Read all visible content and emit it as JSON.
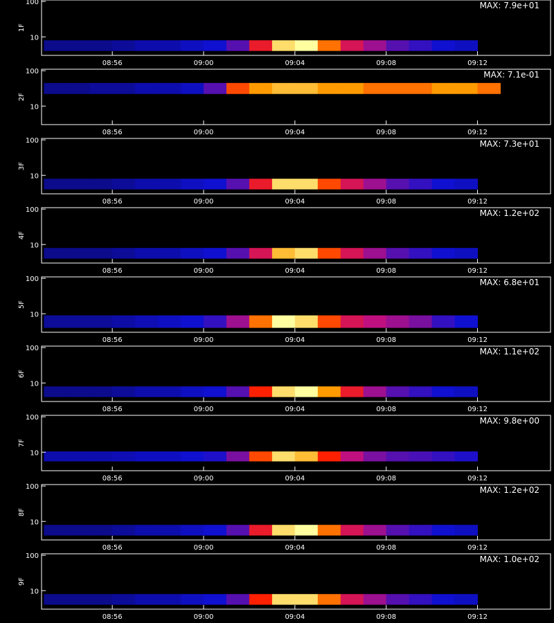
{
  "chart_data": [
    {
      "type": "spectrogram",
      "ylabel": "1F",
      "annotation": "MAX: 7.9e+01",
      "log_y": true,
      "xlim": [
        532.9,
        555.2
      ],
      "ylim": [
        3,
        110
      ],
      "yticks": [
        10,
        100
      ],
      "xticks": [
        {
          "value": 536,
          "label": "08:56"
        },
        {
          "value": 540,
          "label": "09:00"
        },
        {
          "value": 544,
          "label": "09:04"
        },
        {
          "value": 548,
          "label": "09:08"
        },
        {
          "value": 552,
          "label": "09:12"
        }
      ],
      "band": [
        4,
        8
      ],
      "x": [
        533,
        534,
        535,
        536,
        537,
        538,
        539,
        540,
        541,
        542,
        543,
        544,
        545,
        546,
        547,
        548,
        549,
        550,
        551
      ],
      "values": [
        0.2,
        0.2,
        0.2,
        0.22,
        0.25,
        0.25,
        0.28,
        0.3,
        0.4,
        0.65,
        0.95,
        1.0,
        0.8,
        0.6,
        0.5,
        0.4,
        0.35,
        0.3,
        0.28
      ]
    },
    {
      "type": "spectrogram",
      "ylabel": "2F",
      "annotation": "MAX: 7.1e-01",
      "log_y": true,
      "xlim": [
        532.9,
        555.2
      ],
      "ylim": [
        3,
        110
      ],
      "yticks": [
        10,
        100
      ],
      "xticks": [
        {
          "value": 536,
          "label": "08:56"
        },
        {
          "value": 540,
          "label": "09:00"
        },
        {
          "value": 544,
          "label": "09:04"
        },
        {
          "value": 548,
          "label": "09:08"
        },
        {
          "value": 552,
          "label": "09:12"
        }
      ],
      "band": [
        22,
        45
      ],
      "x": [
        533,
        534,
        535,
        536,
        537,
        538,
        539,
        540,
        541,
        542,
        543,
        544,
        545,
        546,
        547,
        548,
        549,
        550,
        551,
        552
      ],
      "values": [
        0.2,
        0.2,
        0.22,
        0.22,
        0.25,
        0.25,
        0.28,
        0.4,
        0.75,
        0.85,
        0.9,
        0.9,
        0.85,
        0.85,
        0.8,
        0.8,
        0.8,
        0.85,
        0.85,
        0.8
      ]
    },
    {
      "type": "spectrogram",
      "ylabel": "3F",
      "annotation": "MAX: 7.3e+01",
      "log_y": true,
      "xlim": [
        532.9,
        555.2
      ],
      "ylim": [
        3,
        110
      ],
      "yticks": [
        10,
        100
      ],
      "xticks": [
        {
          "value": 536,
          "label": "08:56"
        },
        {
          "value": 540,
          "label": "09:00"
        },
        {
          "value": 544,
          "label": "09:04"
        },
        {
          "value": 548,
          "label": "09:08"
        },
        {
          "value": 552,
          "label": "09:12"
        }
      ],
      "band": [
        4,
        8
      ],
      "x": [
        533,
        534,
        535,
        536,
        537,
        538,
        539,
        540,
        541,
        542,
        543,
        544,
        545,
        546,
        547,
        548,
        549,
        550,
        551
      ],
      "values": [
        0.2,
        0.2,
        0.2,
        0.22,
        0.25,
        0.25,
        0.28,
        0.3,
        0.4,
        0.65,
        0.95,
        0.95,
        0.75,
        0.6,
        0.5,
        0.4,
        0.35,
        0.3,
        0.28
      ]
    },
    {
      "type": "spectrogram",
      "ylabel": "4F",
      "annotation": "MAX: 1.2e+02",
      "log_y": true,
      "xlim": [
        532.9,
        555.2
      ],
      "ylim": [
        3,
        110
      ],
      "yticks": [
        10,
        100
      ],
      "xticks": [
        {
          "value": 536,
          "label": "08:56"
        },
        {
          "value": 540,
          "label": "09:00"
        },
        {
          "value": 544,
          "label": "09:04"
        },
        {
          "value": 548,
          "label": "09:08"
        },
        {
          "value": 552,
          "label": "09:12"
        }
      ],
      "band": [
        4,
        8
      ],
      "x": [
        533,
        534,
        535,
        536,
        537,
        538,
        539,
        540,
        541,
        542,
        543,
        544,
        545,
        546,
        547,
        548,
        549,
        550,
        551
      ],
      "values": [
        0.2,
        0.2,
        0.2,
        0.22,
        0.25,
        0.25,
        0.28,
        0.3,
        0.4,
        0.6,
        0.9,
        0.95,
        0.75,
        0.6,
        0.5,
        0.4,
        0.35,
        0.3,
        0.28
      ]
    },
    {
      "type": "spectrogram",
      "ylabel": "5F",
      "annotation": "MAX: 6.8e+01",
      "log_y": true,
      "xlim": [
        532.9,
        555.2
      ],
      "ylim": [
        3,
        110
      ],
      "yticks": [
        10,
        100
      ],
      "xticks": [
        {
          "value": 536,
          "label": "08:56"
        },
        {
          "value": 540,
          "label": "09:00"
        },
        {
          "value": 544,
          "label": "09:04"
        },
        {
          "value": 548,
          "label": "09:08"
        },
        {
          "value": 552,
          "label": "09:12"
        }
      ],
      "band": [
        4,
        9
      ],
      "x": [
        533,
        534,
        535,
        536,
        537,
        538,
        539,
        540,
        541,
        542,
        543,
        544,
        545,
        546,
        547,
        548,
        549,
        550,
        551
      ],
      "values": [
        0.22,
        0.22,
        0.22,
        0.24,
        0.26,
        0.28,
        0.3,
        0.35,
        0.5,
        0.8,
        1.0,
        0.95,
        0.75,
        0.6,
        0.55,
        0.5,
        0.45,
        0.35,
        0.3
      ]
    },
    {
      "type": "spectrogram",
      "ylabel": "6F",
      "annotation": "MAX: 1.1e+02",
      "log_y": true,
      "xlim": [
        532.9,
        555.2
      ],
      "ylim": [
        3,
        110
      ],
      "yticks": [
        10,
        100
      ],
      "xticks": [
        {
          "value": 536,
          "label": "08:56"
        },
        {
          "value": 540,
          "label": "09:00"
        },
        {
          "value": 544,
          "label": "09:04"
        },
        {
          "value": 548,
          "label": "09:08"
        },
        {
          "value": 552,
          "label": "09:12"
        }
      ],
      "band": [
        4,
        8
      ],
      "x": [
        533,
        534,
        535,
        536,
        537,
        538,
        539,
        540,
        541,
        542,
        543,
        544,
        545,
        546,
        547,
        548,
        549,
        550,
        551
      ],
      "values": [
        0.2,
        0.2,
        0.2,
        0.22,
        0.25,
        0.25,
        0.28,
        0.3,
        0.4,
        0.7,
        0.95,
        1.0,
        0.85,
        0.65,
        0.5,
        0.4,
        0.35,
        0.3,
        0.28
      ]
    },
    {
      "type": "spectrogram",
      "ylabel": "7F",
      "annotation": "MAX: 9.8e+00",
      "log_y": true,
      "xlim": [
        532.9,
        555.2
      ],
      "ylim": [
        3,
        110
      ],
      "yticks": [
        10,
        100
      ],
      "xticks": [
        {
          "value": 536,
          "label": "08:56"
        },
        {
          "value": 540,
          "label": "09:00"
        },
        {
          "value": 544,
          "label": "09:04"
        },
        {
          "value": 548,
          "label": "09:08"
        },
        {
          "value": 552,
          "label": "09:12"
        }
      ],
      "band": [
        5.5,
        10.5
      ],
      "x": [
        533,
        534,
        535,
        536,
        537,
        538,
        539,
        540,
        541,
        542,
        543,
        544,
        545,
        546,
        547,
        548,
        549,
        550,
        551
      ],
      "values": [
        0.25,
        0.25,
        0.25,
        0.26,
        0.28,
        0.28,
        0.3,
        0.32,
        0.45,
        0.75,
        0.95,
        0.9,
        0.7,
        0.55,
        0.45,
        0.4,
        0.38,
        0.35,
        0.32
      ]
    },
    {
      "type": "spectrogram",
      "ylabel": "8F",
      "annotation": "MAX: 1.2e+02",
      "log_y": true,
      "xlim": [
        532.9,
        555.2
      ],
      "ylim": [
        3,
        110
      ],
      "yticks": [
        10,
        100
      ],
      "xticks": [
        {
          "value": 536,
          "label": "08:56"
        },
        {
          "value": 540,
          "label": "09:00"
        },
        {
          "value": 544,
          "label": "09:04"
        },
        {
          "value": 548,
          "label": "09:08"
        },
        {
          "value": 552,
          "label": "09:12"
        }
      ],
      "band": [
        4,
        8
      ],
      "x": [
        533,
        534,
        535,
        536,
        537,
        538,
        539,
        540,
        541,
        542,
        543,
        544,
        545,
        546,
        547,
        548,
        549,
        550,
        551
      ],
      "values": [
        0.2,
        0.2,
        0.2,
        0.22,
        0.25,
        0.25,
        0.28,
        0.3,
        0.4,
        0.65,
        0.95,
        1.0,
        0.8,
        0.6,
        0.5,
        0.4,
        0.35,
        0.3,
        0.28
      ]
    },
    {
      "type": "spectrogram",
      "ylabel": "9F",
      "annotation": "MAX: 1.0e+02",
      "log_y": true,
      "xlim": [
        532.9,
        555.2
      ],
      "ylim": [
        3,
        110
      ],
      "yticks": [
        10,
        100
      ],
      "xticks": [
        {
          "value": 536,
          "label": "08:56"
        },
        {
          "value": 540,
          "label": "09:00"
        },
        {
          "value": 544,
          "label": "09:04"
        },
        {
          "value": 548,
          "label": "09:08"
        },
        {
          "value": 552,
          "label": "09:12"
        }
      ],
      "band": [
        4,
        8
      ],
      "x": [
        533,
        534,
        535,
        536,
        537,
        538,
        539,
        540,
        541,
        542,
        543,
        544,
        545,
        546,
        547,
        548,
        549,
        550,
        551
      ],
      "values": [
        0.2,
        0.2,
        0.2,
        0.22,
        0.25,
        0.25,
        0.28,
        0.3,
        0.4,
        0.7,
        0.95,
        0.95,
        0.8,
        0.6,
        0.5,
        0.4,
        0.35,
        0.3,
        0.28
      ]
    }
  ]
}
